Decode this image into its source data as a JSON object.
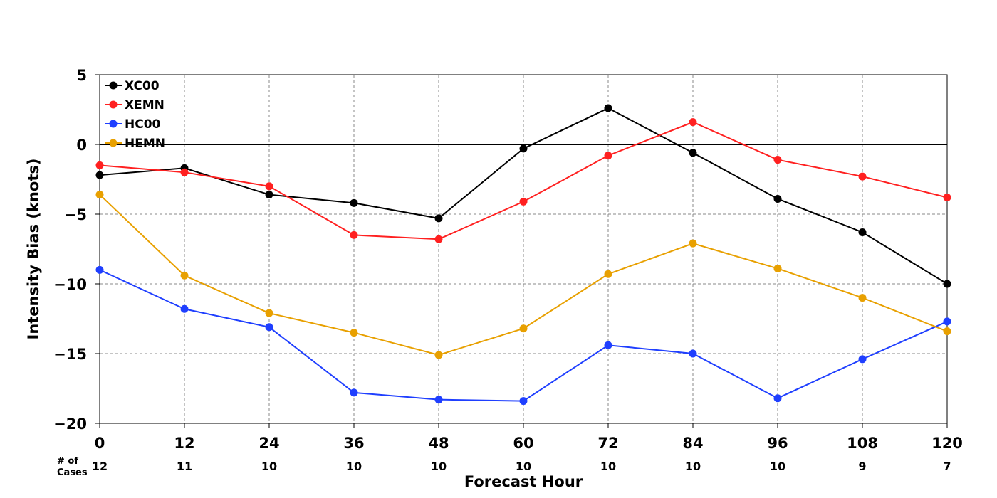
{
  "chart_data": {
    "type": "line",
    "xlabel": "Forecast Hour",
    "ylabel": "Intensity Bias (knots)",
    "x": [
      0,
      12,
      24,
      36,
      48,
      60,
      72,
      84,
      96,
      108,
      120
    ],
    "x_tick_labels": [
      "0",
      "12",
      "24",
      "36",
      "48",
      "60",
      "72",
      "84",
      "96",
      "108",
      "120"
    ],
    "xlim": [
      0,
      120
    ],
    "ylim": [
      -20,
      5
    ],
    "y_ticks": [
      5,
      0,
      -5,
      -10,
      -15,
      -20
    ],
    "y_tick_labels": [
      "5",
      "0",
      "−5",
      "−10",
      "−15",
      "−20"
    ],
    "grid": true,
    "zero_line": true,
    "legend_position": "top-left",
    "cases_title": [
      "# of",
      "Cases"
    ],
    "cases": [
      "12",
      "11",
      "10",
      "10",
      "10",
      "10",
      "10",
      "10",
      "10",
      "9",
      "7"
    ],
    "series": [
      {
        "name": "XC00",
        "color": "#000000",
        "values": [
          -2.2,
          -1.7,
          -3.6,
          -4.2,
          -5.3,
          -0.3,
          2.6,
          -0.6,
          -3.9,
          -6.3,
          -10.0
        ]
      },
      {
        "name": "XEMN",
        "color": "#ff2020",
        "values": [
          -1.5,
          -2.0,
          -3.0,
          -6.5,
          -6.8,
          -4.1,
          -0.8,
          1.6,
          -1.1,
          -2.3,
          -3.8
        ]
      },
      {
        "name": "HC00",
        "color": "#1f3fff",
        "values": [
          -9.0,
          -11.8,
          -13.1,
          -17.8,
          -18.3,
          -18.4,
          -14.4,
          -15.0,
          -18.2,
          -15.4,
          -12.7
        ]
      },
      {
        "name": "HEMN",
        "color": "#e8a000",
        "values": [
          -3.6,
          -9.4,
          -12.1,
          -13.5,
          -15.1,
          -13.2,
          -9.3,
          -7.1,
          -8.9,
          -11.0,
          -13.4
        ]
      }
    ]
  }
}
